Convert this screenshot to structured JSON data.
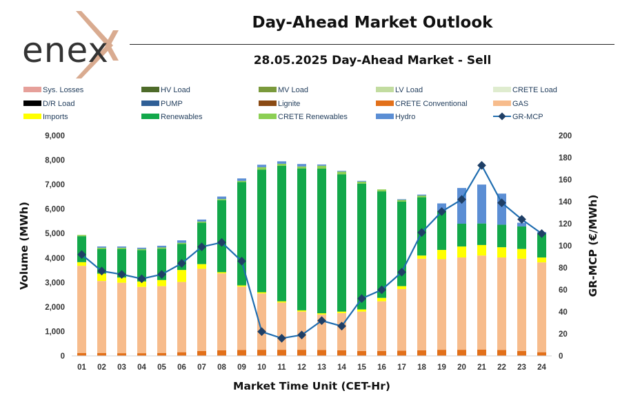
{
  "header": {
    "logo_text": "enex",
    "title": "Day-Ahead Market Outlook",
    "subtitle": "28.05.2025  Day-Ahead Market - Sell"
  },
  "chart_data": {
    "type": "bar",
    "stacked": true,
    "categories": [
      "01",
      "02",
      "03",
      "04",
      "05",
      "06",
      "07",
      "08",
      "09",
      "10",
      "11",
      "12",
      "13",
      "14",
      "15",
      "16",
      "17",
      "18",
      "19",
      "20",
      "21",
      "22",
      "23",
      "24"
    ],
    "xlabel": "Market Time Unit (CET-Hr)",
    "ylabel": "Volume (MWh)",
    "y2label": "GR-MCP (€/MWh)",
    "ylim": [
      0,
      9000
    ],
    "y2lim": [
      0,
      200
    ],
    "y_ticks": [
      "0",
      "1,000",
      "2,000",
      "3,000",
      "4,000",
      "5,000",
      "6,000",
      "7,000",
      "8,000",
      "9,000"
    ],
    "y2_ticks": [
      "0",
      "20",
      "40",
      "60",
      "80",
      "100",
      "120",
      "140",
      "160",
      "180",
      "200"
    ],
    "legend": [
      {
        "name": "Sys. Losses",
        "color": "#e6a09a",
        "kind": "bar"
      },
      {
        "name": "HV Load",
        "color": "#4e6b2a",
        "kind": "bar"
      },
      {
        "name": "MV Load",
        "color": "#7a9a3c",
        "kind": "bar"
      },
      {
        "name": "LV Load",
        "color": "#c2dca0",
        "kind": "bar"
      },
      {
        "name": "CRETE Load",
        "color": "#dfeccf",
        "kind": "bar"
      },
      {
        "name": "D/R Load",
        "color": "#000000",
        "kind": "bar"
      },
      {
        "name": "PUMP",
        "color": "#2f5f96",
        "kind": "bar"
      },
      {
        "name": "Lignite",
        "color": "#8a4a14",
        "kind": "bar"
      },
      {
        "name": "CRETE Conventional",
        "color": "#e2701a",
        "kind": "bar"
      },
      {
        "name": "GAS",
        "color": "#f7bc8c",
        "kind": "bar"
      },
      {
        "name": "Imports",
        "color": "#ffff00",
        "kind": "bar"
      },
      {
        "name": "Renewables",
        "color": "#12a84a",
        "kind": "bar"
      },
      {
        "name": "CRETE Renewables",
        "color": "#8ccf54",
        "kind": "bar"
      },
      {
        "name": "Hydro",
        "color": "#5b8ed4",
        "kind": "bar"
      },
      {
        "name": "GR-MCP",
        "color": "#1f6db0",
        "kind": "line"
      }
    ],
    "series": [
      {
        "name": "CRETE Conventional",
        "color": "#e2701a",
        "values": [
          120,
          120,
          110,
          110,
          120,
          150,
          200,
          230,
          240,
          250,
          250,
          250,
          240,
          230,
          200,
          200,
          210,
          230,
          250,
          250,
          260,
          240,
          200,
          150
        ]
      },
      {
        "name": "GAS",
        "color": "#f7bc8c",
        "values": [
          3560,
          2940,
          2880,
          2710,
          2730,
          2870,
          3360,
          3140,
          2590,
          2300,
          1930,
          1560,
          1450,
          1520,
          1610,
          2030,
          2520,
          3740,
          3700,
          3770,
          3840,
          3780,
          3770,
          3670
        ]
      },
      {
        "name": "Imports",
        "color": "#ffff00",
        "values": [
          150,
          300,
          210,
          220,
          250,
          490,
          190,
          50,
          50,
          50,
          50,
          50,
          50,
          60,
          90,
          140,
          120,
          130,
          380,
          450,
          430,
          420,
          400,
          200
        ]
      },
      {
        "name": "Renewables",
        "color": "#12a84a",
        "values": [
          1060,
          1010,
          1170,
          1280,
          1280,
          1060,
          1690,
          2940,
          4220,
          5010,
          5540,
          5800,
          5910,
          5610,
          5140,
          4350,
          3450,
          2380,
          1600,
          930,
          880,
          920,
          920,
          970
        ]
      },
      {
        "name": "CRETE Renewables",
        "color": "#8ccf54",
        "values": [
          50,
          50,
          50,
          50,
          50,
          50,
          50,
          50,
          50,
          100,
          80,
          80,
          120,
          110,
          80,
          80,
          70,
          70,
          0,
          0,
          0,
          0,
          0,
          0
        ]
      },
      {
        "name": "Hydro",
        "color": "#5b8ed4",
        "values": [
          0,
          50,
          50,
          50,
          70,
          100,
          80,
          100,
          100,
          100,
          100,
          100,
          50,
          30,
          30,
          0,
          30,
          40,
          300,
          1460,
          1590,
          1270,
          150,
          70
        ]
      }
    ],
    "line": {
      "name": "GR-MCP",
      "color": "#1f6db0",
      "axis": "right",
      "values": [
        92,
        77,
        74,
        70,
        74,
        84,
        99,
        103,
        86,
        22,
        16,
        19,
        32,
        27,
        52,
        60,
        76,
        112,
        131,
        142,
        173,
        139,
        124,
        111
      ]
    }
  }
}
